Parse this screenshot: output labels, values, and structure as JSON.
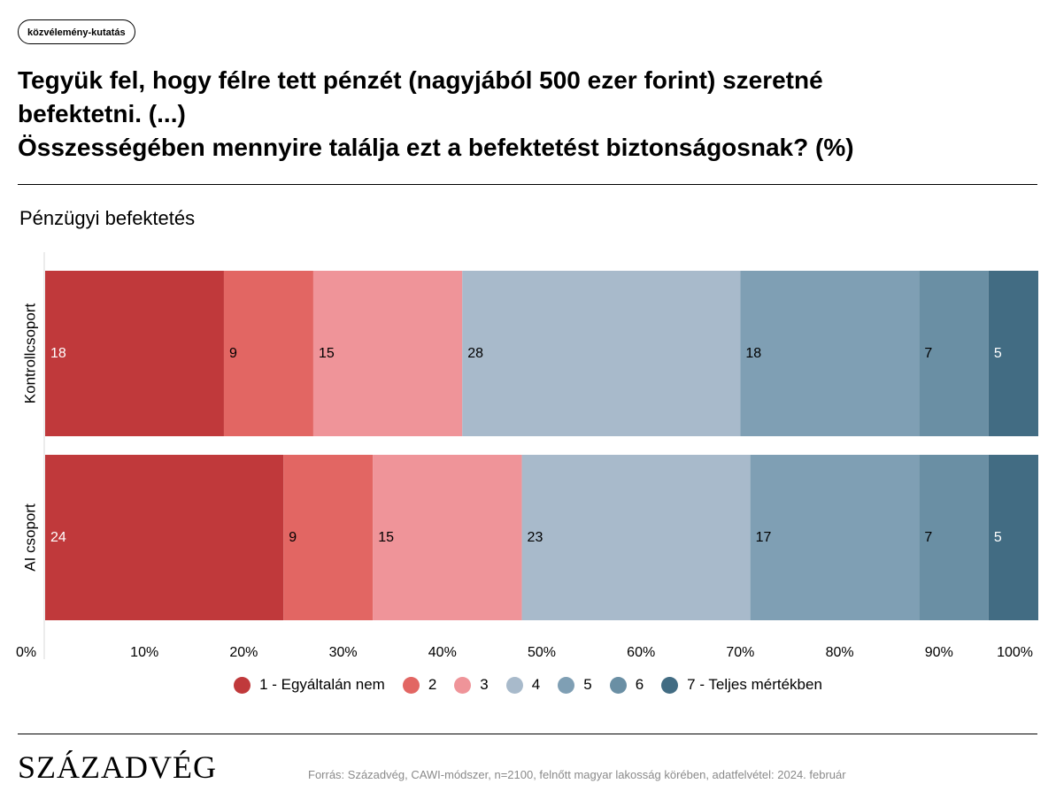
{
  "tag": "közvélemény-kutatás",
  "title_lines": [
    "Tegyük fel, hogy félre tett pénzét (nagyjából 500 ezer forint) szeretné",
    "befektetni. (...)",
    "Összességében mennyire találja ezt a befektetést biztonságosnak? (%)"
  ],
  "subtitle": "Pénzügyi befektetés",
  "brand": "SZÁZADVÉG",
  "source": "Forrás: Századvég, CAWI-módszer, n=2100, felnőtt magyar lakosság körében, adatfelvétel: 2024. február",
  "chart_data": {
    "type": "bar",
    "orientation": "horizontal",
    "stacked": true,
    "categories": [
      "Kontrollcsoport",
      "AI csoport"
    ],
    "series": [
      {
        "name": "1 - Egyáltalán nem",
        "values": [
          18,
          24
        ],
        "color": "#c0393b"
      },
      {
        "name": "2",
        "values": [
          9,
          9
        ],
        "color": "#e26663"
      },
      {
        "name": "3",
        "values": [
          15,
          15
        ],
        "color": "#ef9499"
      },
      {
        "name": "4",
        "values": [
          28,
          23
        ],
        "color": "#a8bacb"
      },
      {
        "name": "5",
        "values": [
          18,
          17
        ],
        "color": "#7f9fb4"
      },
      {
        "name": "6",
        "values": [
          7,
          7
        ],
        "color": "#6a8fa4"
      },
      {
        "name": "7 - Teljes mértékben",
        "values": [
          5,
          5
        ],
        "color": "#426c83"
      }
    ],
    "x_ticks": [
      "0%",
      "10%",
      "20%",
      "30%",
      "40%",
      "50%",
      "60%",
      "70%",
      "80%",
      "90%",
      "100%"
    ],
    "xlim": [
      0,
      100
    ],
    "grid": false,
    "legend_position": "bottom"
  }
}
